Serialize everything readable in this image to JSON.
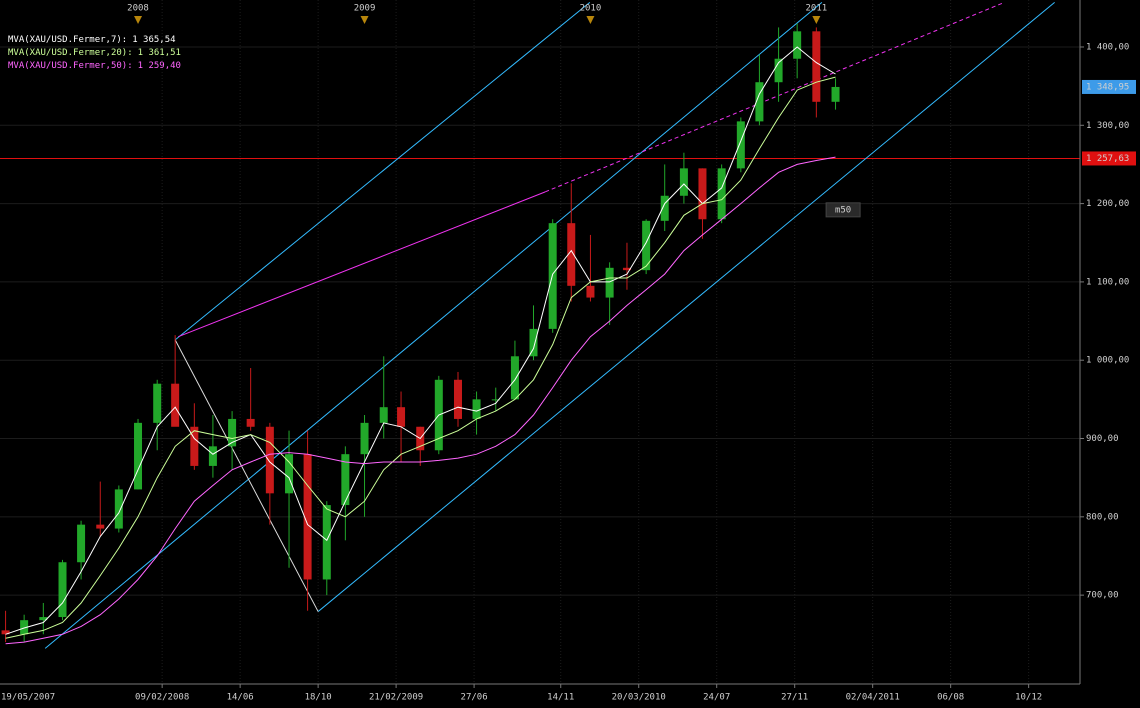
{
  "chart_data": {
    "type": "candlestick",
    "xlim": [
      "2007-05-23",
      "2012-03-02"
    ],
    "ylim": [
      586.5,
      1460
    ],
    "xticks": [
      {
        "value": "2007-05-19",
        "label": "19/05/2007"
      },
      {
        "value": "2008-02-09",
        "label": "09/02/2008"
      },
      {
        "value": "2008-06-14",
        "label": "14/06"
      },
      {
        "value": "2008-10-18",
        "label": "18/10"
      },
      {
        "value": "2009-02-21",
        "label": "21/02/2009"
      },
      {
        "value": "2009-06-27",
        "label": "27/06"
      },
      {
        "value": "2009-11-14",
        "label": "14/11"
      },
      {
        "value": "2010-03-20",
        "label": "20/03/2010"
      },
      {
        "value": "2010-07-24",
        "label": "24/07"
      },
      {
        "value": "2010-11-27",
        "label": "27/11"
      },
      {
        "value": "2011-04-02",
        "label": "02/04/2011"
      },
      {
        "value": "2011-08-06",
        "label": "06/08"
      },
      {
        "value": "2011-12-10",
        "label": "10/12"
      }
    ],
    "yticks": [
      {
        "value": 700,
        "label": "700,00"
      },
      {
        "value": 800,
        "label": "800,00"
      },
      {
        "value": 900,
        "label": "900,00"
      },
      {
        "value": 1000,
        "label": "1 000,00"
      },
      {
        "value": 1100,
        "label": "1 100,00"
      },
      {
        "value": 1200,
        "label": "1 200,00"
      },
      {
        "value": 1300,
        "label": "1 300,00"
      },
      {
        "value": 1400,
        "label": "1 400,00"
      }
    ],
    "grid": true,
    "year_markers": [
      {
        "value": "2008-01-01",
        "label": "2008"
      },
      {
        "value": "2009-01-01",
        "label": "2009"
      },
      {
        "value": "2010-01-01",
        "label": "2010"
      },
      {
        "value": "2011-01-01",
        "label": "2011"
      }
    ],
    "up_color": "#22a82a",
    "down_color": "#c81a1a",
    "candles": {
      "x": [
        "2007-06-01",
        "2007-07-01",
        "2007-08-01",
        "2007-09-01",
        "2007-10-01",
        "2007-11-01",
        "2007-12-01",
        "2008-01-01",
        "2008-02-01",
        "2008-03-01",
        "2008-04-01",
        "2008-05-01",
        "2008-06-01",
        "2008-07-01",
        "2008-08-01",
        "2008-09-01",
        "2008-10-01",
        "2008-11-01",
        "2008-12-01",
        "2009-01-01",
        "2009-02-01",
        "2009-03-01",
        "2009-04-01",
        "2009-05-01",
        "2009-06-01",
        "2009-07-01",
        "2009-08-01",
        "2009-09-01",
        "2009-10-01",
        "2009-11-01",
        "2009-12-01",
        "2010-01-01",
        "2010-02-01",
        "2010-03-01",
        "2010-04-01",
        "2010-05-01",
        "2010-06-01",
        "2010-07-01",
        "2010-08-01",
        "2010-09-01",
        "2010-10-01",
        "2010-11-01",
        "2010-12-01",
        "2011-01-01",
        "2011-02-01"
      ],
      "open": [
        655,
        650,
        668,
        672,
        742,
        790,
        785,
        835,
        920,
        970,
        915,
        865,
        890,
        925,
        915,
        830,
        880,
        720,
        815,
        880,
        920,
        940,
        915,
        885,
        975,
        925,
        950,
        950,
        1005,
        1040,
        1175,
        1095,
        1080,
        1118,
        1115,
        1178,
        1210,
        1245,
        1180,
        1245,
        1305,
        1355,
        1385,
        1420,
        1330
      ],
      "high": [
        680,
        675,
        690,
        745,
        795,
        845,
        840,
        925,
        975,
        1032,
        945,
        930,
        935,
        990,
        920,
        910,
        910,
        820,
        890,
        930,
        1005,
        960,
        915,
        980,
        985,
        960,
        965,
        1025,
        1070,
        1180,
        1226,
        1160,
        1125,
        1150,
        1180,
        1250,
        1265,
        1245,
        1250,
        1310,
        1390,
        1425,
        1430,
        1425,
        1360
      ],
      "low": [
        640,
        640,
        650,
        668,
        720,
        775,
        780,
        835,
        885,
        920,
        860,
        850,
        860,
        910,
        790,
        735,
        680,
        700,
        770,
        800,
        900,
        870,
        865,
        880,
        915,
        905,
        935,
        950,
        1000,
        1035,
        1075,
        1075,
        1045,
        1090,
        1110,
        1165,
        1200,
        1155,
        1175,
        1240,
        1300,
        1330,
        1360,
        1310,
        1320
      ],
      "close": [
        650,
        668,
        672,
        742,
        790,
        785,
        835,
        920,
        970,
        915,
        865,
        890,
        925,
        915,
        830,
        880,
        720,
        815,
        880,
        920,
        940,
        915,
        885,
        975,
        925,
        950,
        950,
        1005,
        1040,
        1175,
        1095,
        1080,
        1118,
        1115,
        1178,
        1210,
        1245,
        1180,
        1245,
        1305,
        1355,
        1385,
        1420,
        1330,
        1348.95
      ]
    },
    "series": [
      {
        "name": "MVA(XAU/USD.Fermer,7):",
        "last_label": "1 365,54",
        "color": "#ffffff",
        "values": [
          650,
          658,
          665,
          690,
          730,
          775,
          805,
          860,
          915,
          940,
          900,
          880,
          895,
          905,
          870,
          850,
          790,
          770,
          820,
          870,
          920,
          915,
          900,
          930,
          940,
          935,
          945,
          975,
          1015,
          1110,
          1140,
          1100,
          1100,
          1110,
          1150,
          1200,
          1225,
          1200,
          1220,
          1280,
          1340,
          1380,
          1400,
          1380,
          1365.54
        ]
      },
      {
        "name": "MVA(XAU/USD.Fermer,20):",
        "last_label": "1 361,51",
        "color": "#ccff99",
        "values": [
          645,
          650,
          655,
          665,
          690,
          725,
          760,
          800,
          850,
          890,
          910,
          905,
          900,
          905,
          895,
          870,
          840,
          810,
          800,
          820,
          860,
          880,
          890,
          900,
          910,
          925,
          935,
          950,
          975,
          1020,
          1080,
          1100,
          1105,
          1105,
          1120,
          1150,
          1185,
          1200,
          1205,
          1230,
          1270,
          1310,
          1345,
          1355,
          1361.51
        ]
      },
      {
        "name": "MVA(XAU/USD.Fermer,50):",
        "last_label": "1 259,40",
        "color": "#ff66ff",
        "values": [
          638,
          640,
          645,
          650,
          660,
          675,
          695,
          720,
          750,
          785,
          820,
          840,
          860,
          870,
          880,
          882,
          880,
          875,
          870,
          868,
          870,
          870,
          870,
          872,
          875,
          880,
          890,
          905,
          930,
          965,
          1000,
          1030,
          1050,
          1070,
          1090,
          1110,
          1140,
          1160,
          1180,
          1200,
          1220,
          1240,
          1250,
          1255,
          1259.4
        ]
      }
    ],
    "trendlines": [
      {
        "color": "#33bbff",
        "style": "solid",
        "x": [
          "2008-03-01",
          "2009-12-31"
        ],
        "values": [
          1026,
          1457
        ]
      },
      {
        "color": "#33bbff",
        "style": "solid",
        "x": [
          "2007-08-04",
          "2011-01-10"
        ],
        "values": [
          632,
          1457
        ]
      },
      {
        "color": "#33bbff",
        "style": "solid",
        "x": [
          "2008-10-18",
          "2012-01-21"
        ],
        "values": [
          679,
          1457
        ]
      },
      {
        "color": "#dddddd",
        "style": "solid",
        "x": [
          "2008-03-01",
          "2008-10-18"
        ],
        "values": [
          1026,
          679
        ]
      },
      {
        "color": "#ee33ee",
        "style": "solid",
        "x": [
          "2008-03-06",
          "2009-10-20"
        ],
        "values": [
          1030,
          1215
        ]
      },
      {
        "color": "#ee33ee",
        "style": "dashed",
        "x": [
          "2009-10-20",
          "2011-11-01"
        ],
        "values": [
          1215,
          1457
        ]
      }
    ],
    "price_line": {
      "value": 1257.63,
      "label": "1 257,63",
      "color": "#e01010"
    },
    "current_price": {
      "value": 1348.95,
      "label": "1 348,95",
      "color": "#3d9be9"
    },
    "annotation": {
      "text": "m50",
      "x": "2011-01-20",
      "value": 1192
    }
  }
}
